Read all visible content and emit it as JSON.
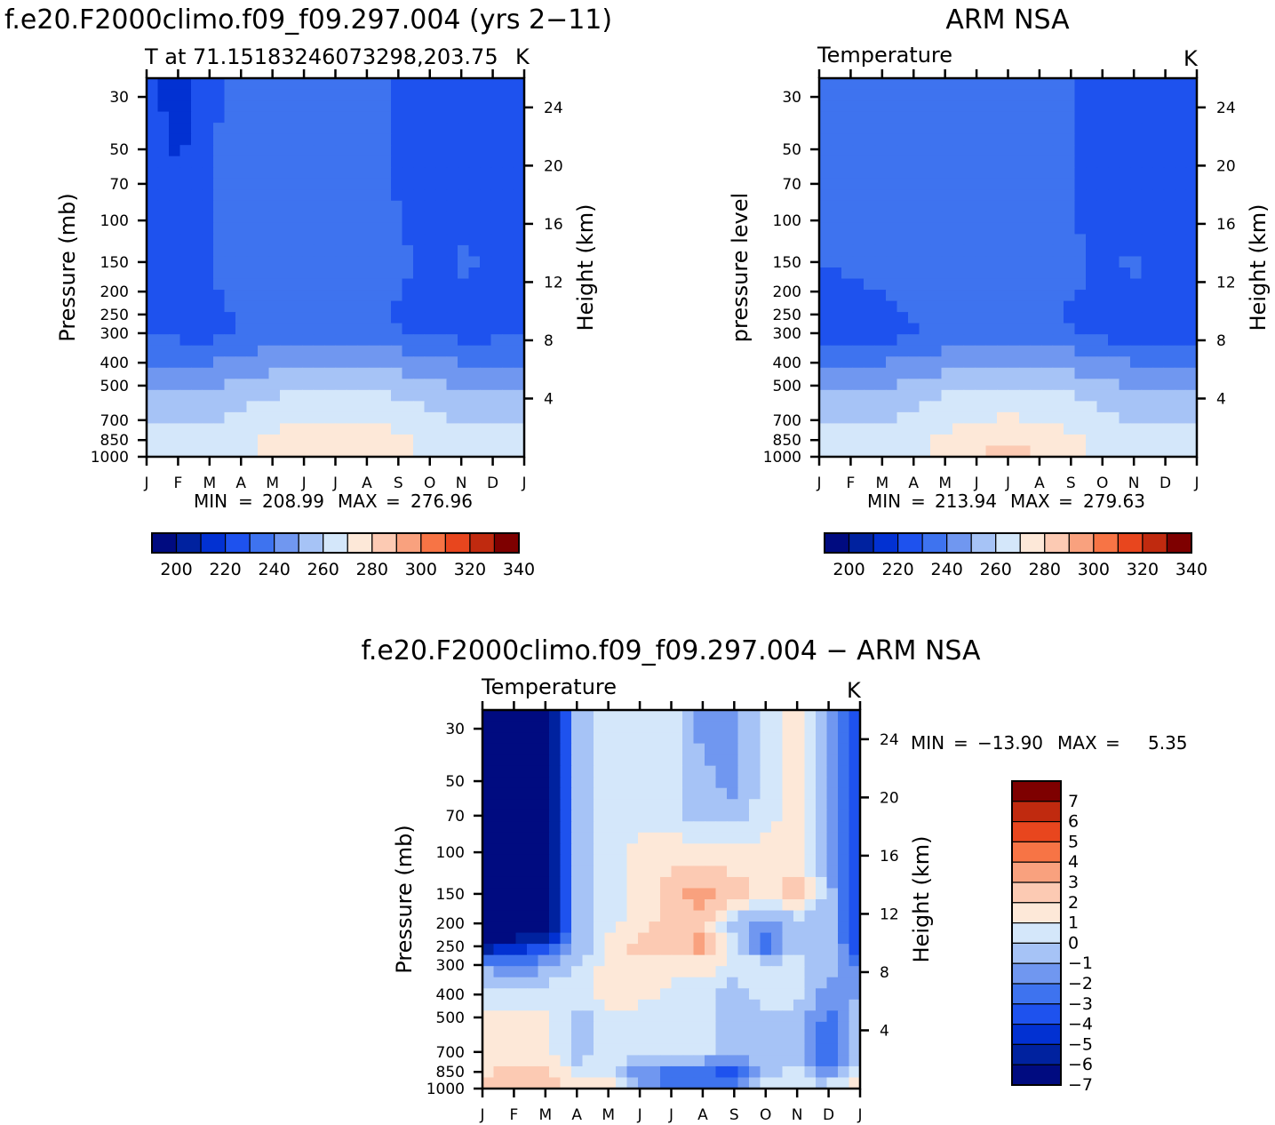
{
  "titles": {
    "top_left": "f.e20.F2000climo.f09_f09.297.004 (yrs 2−11)",
    "top_right": "ARM NSA",
    "bottom": "f.e20.F2000climo.f09_f09.297.004 − ARM NSA"
  },
  "chart_data": [
    {
      "type": "heatmap",
      "subtitle": "T at 71.15183246073298,203.75",
      "units": "K",
      "ylabel": "Pressure (mb)",
      "ylabel_right": "Height (km)",
      "x_ticks": [
        "J",
        "F",
        "M",
        "A",
        "M",
        "J",
        "J",
        "A",
        "S",
        "O",
        "N",
        "D",
        "J"
      ],
      "y_ticks": [
        30,
        50,
        70,
        100,
        150,
        200,
        250,
        300,
        400,
        500,
        700,
        850,
        1000
      ],
      "y_right_ticks": [
        4,
        8,
        12,
        16,
        20,
        24
      ],
      "ylim": [
        1000,
        25
      ],
      "min_label": "MIN",
      "min": "208.99",
      "max_label": "MAX",
      "max": "276.96",
      "colorbar": {
        "labels": [
          "200",
          "220",
          "240",
          "260",
          "280",
          "300",
          "320",
          "340"
        ],
        "colors": [
          "#000b80",
          "#00229f",
          "#0231d2",
          "#1e52ee",
          "#3e73ef",
          "#7097f0",
          "#a6c3f6",
          "#d4e7fa",
          "#fde8d8",
          "#fccab3",
          "#f9a17e",
          "#f77445",
          "#e8461e",
          "#c02a0f",
          "#7e0000"
        ]
      },
      "grid": [
        [
          225,
          205,
          222,
          230,
          230,
          230,
          230,
          230,
          222,
          216,
          216,
          216,
          222
        ],
        [
          222,
          212,
          224,
          230,
          230,
          230,
          230,
          230,
          224,
          216,
          216,
          218,
          222
        ],
        [
          222,
          220,
          224,
          230,
          230,
          230,
          230,
          230,
          224,
          216,
          218,
          220,
          222
        ],
        [
          222,
          222,
          224,
          230,
          230,
          230,
          230,
          230,
          226,
          218,
          224,
          222,
          222
        ],
        [
          222,
          222,
          224,
          230,
          230,
          230,
          230,
          230,
          228,
          222,
          226,
          224,
          222
        ],
        [
          222,
          222,
          224,
          230,
          230,
          230,
          230,
          230,
          226,
          220,
          224,
          222,
          222
        ],
        [
          219,
          219,
          218,
          228,
          230,
          230,
          230,
          230,
          222,
          217,
          219,
          219,
          219
        ],
        [
          224,
          222,
          222,
          226,
          230,
          230,
          232,
          230,
          228,
          222,
          222,
          222,
          224
        ],
        [
          235,
          235,
          235,
          238,
          240,
          242,
          242,
          242,
          240,
          238,
          235,
          235,
          235
        ],
        [
          244,
          244,
          244,
          248,
          252,
          254,
          254,
          254,
          252,
          248,
          244,
          244,
          244
        ],
        [
          254,
          254,
          254,
          258,
          262,
          264,
          265,
          264,
          262,
          258,
          254,
          254,
          254
        ],
        [
          258,
          258,
          258,
          262,
          268,
          272,
          274,
          272,
          268,
          262,
          258,
          258,
          258
        ],
        [
          258,
          258,
          258,
          262,
          268,
          274,
          276,
          274,
          268,
          262,
          258,
          258,
          258
        ]
      ]
    },
    {
      "type": "heatmap",
      "subtitle": "Temperature",
      "units": "K",
      "ylabel": "pressure level",
      "ylabel_right": "Height (km)",
      "x_ticks": [
        "J",
        "F",
        "M",
        "A",
        "M",
        "J",
        "J",
        "A",
        "S",
        "O",
        "N",
        "D",
        "J"
      ],
      "y_ticks": [
        30,
        50,
        70,
        100,
        150,
        200,
        250,
        300,
        400,
        500,
        700,
        850,
        1000
      ],
      "y_right_ticks": [
        4,
        8,
        12,
        16,
        20,
        24
      ],
      "ylim": [
        1000,
        25
      ],
      "min_label": "MIN",
      "min": "213.94",
      "max_label": "MAX",
      "max": "279.63",
      "colorbar": {
        "labels": [
          "200",
          "220",
          "240",
          "260",
          "280",
          "300",
          "320",
          "340"
        ],
        "colors": [
          "#000b80",
          "#00229f",
          "#0231d2",
          "#1e52ee",
          "#3e73ef",
          "#7097f0",
          "#a6c3f6",
          "#d4e7fa",
          "#fde8d8",
          "#fccab3",
          "#f9a17e",
          "#f77445",
          "#e8461e",
          "#c02a0f",
          "#7e0000"
        ]
      },
      "grid": [
        [
          226,
          226,
          226,
          226,
          228,
          230,
          234,
          230,
          226,
          220,
          216,
          218,
          222
        ],
        [
          226,
          226,
          226,
          226,
          228,
          230,
          230,
          230,
          226,
          220,
          216,
          218,
          222
        ],
        [
          226,
          226,
          226,
          226,
          228,
          230,
          230,
          230,
          226,
          220,
          218,
          220,
          222
        ],
        [
          226,
          226,
          226,
          226,
          228,
          230,
          230,
          230,
          226,
          222,
          220,
          222,
          222
        ],
        [
          226,
          226,
          226,
          226,
          228,
          230,
          230,
          230,
          226,
          224,
          226,
          222,
          222
        ],
        [
          222,
          224,
          226,
          226,
          228,
          230,
          230,
          230,
          226,
          224,
          224,
          222,
          222
        ],
        [
          218,
          218,
          220,
          228,
          230,
          230,
          230,
          230,
          222,
          218,
          218,
          218,
          218
        ],
        [
          219,
          219,
          218,
          224,
          230,
          230,
          232,
          230,
          228,
          222,
          219,
          219,
          219
        ],
        [
          235,
          235,
          235,
          238,
          240,
          242,
          242,
          242,
          240,
          238,
          235,
          235,
          235
        ],
        [
          244,
          244,
          244,
          248,
          252,
          254,
          255,
          254,
          252,
          248,
          244,
          244,
          244
        ],
        [
          254,
          254,
          254,
          258,
          262,
          265,
          266,
          265,
          262,
          258,
          254,
          254,
          254
        ],
        [
          258,
          258,
          258,
          262,
          268,
          273,
          275,
          273,
          268,
          262,
          258,
          258,
          258
        ],
        [
          258,
          258,
          258,
          262,
          268,
          275,
          279,
          275,
          268,
          262,
          258,
          258,
          258
        ]
      ]
    },
    {
      "type": "heatmap",
      "subtitle": "Temperature",
      "units": "K",
      "ylabel": "Pressure (mb)",
      "ylabel_right": "Height (km)",
      "x_ticks": [
        "J",
        "F",
        "M",
        "A",
        "M",
        "J",
        "J",
        "A",
        "S",
        "O",
        "N",
        "D",
        "J"
      ],
      "y_ticks": [
        30,
        50,
        70,
        100,
        150,
        200,
        250,
        300,
        400,
        500,
        700,
        850,
        1000
      ],
      "y_right_ticks": [
        4,
        8,
        12,
        16,
        20,
        24
      ],
      "ylim": [
        1000,
        25
      ],
      "min_label": "MIN",
      "min": "−13.90",
      "max_label": "MAX",
      "max": "5.35",
      "colorbar": {
        "labels": [
          "7",
          "6",
          "5",
          "4",
          "3",
          "2",
          "1",
          "0",
          "−1",
          "−2",
          "−3",
          "−4",
          "−5",
          "−6",
          "−7"
        ],
        "colors": [
          "#000b80",
          "#00229f",
          "#0231d2",
          "#1e52ee",
          "#3e73ef",
          "#7097f0",
          "#a6c3f6",
          "#d4e7fa",
          "#fde8d8",
          "#fccab3",
          "#f9a17e",
          "#f77445",
          "#e8461e",
          "#c02a0f",
          "#7e0000"
        ]
      },
      "grid": [
        [
          -9,
          -9,
          -9,
          -2,
          -0.5,
          -0.5,
          -0.5,
          -2.5,
          -2.5,
          -0.5,
          0.5,
          -2,
          -5
        ],
        [
          -9,
          -9,
          -9,
          -2,
          -0.5,
          -0.5,
          -0.5,
          -1.5,
          -2.5,
          -0.5,
          0.5,
          -2,
          -5
        ],
        [
          -9,
          -9,
          -9,
          -2,
          -0.5,
          -0.5,
          -0.5,
          -1.5,
          -1.5,
          -0.5,
          0.5,
          -2,
          -5
        ],
        [
          -9,
          -9,
          -9,
          -2,
          -0.5,
          0.5,
          0.5,
          0.5,
          0.5,
          0.5,
          0.5,
          -2,
          -5
        ],
        [
          -9,
          -9,
          -9,
          -2,
          -0.5,
          0.5,
          1.5,
          2.5,
          1.5,
          0.5,
          1.5,
          -1.5,
          -5
        ],
        [
          -9,
          -9,
          -9,
          -2,
          -0.5,
          0.5,
          1.5,
          1.5,
          -1.5,
          -2.5,
          -1.5,
          -1.5,
          -5
        ],
        [
          -7,
          -6,
          -5,
          -2,
          0.5,
          1.5,
          1.5,
          2.5,
          -0.5,
          -3.5,
          -1.5,
          -1.5,
          -5
        ],
        [
          -2,
          -3,
          -2,
          -1,
          0.5,
          0.5,
          0.5,
          0.5,
          -0.5,
          -0.5,
          -0.5,
          -1.5,
          -3
        ],
        [
          -0.5,
          -1,
          -0.5,
          -0.5,
          0.5,
          0.5,
          -0.5,
          -0.5,
          -1.5,
          -0.5,
          -0.5,
          -2.5,
          -2
        ],
        [
          0.5,
          0.5,
          0.5,
          -1.5,
          -0.5,
          -0.5,
          -0.5,
          -0.5,
          -1.5,
          -1.5,
          -1.5,
          -3.5,
          -1
        ],
        [
          0.5,
          0.5,
          0.5,
          -1.5,
          -0.5,
          -0.5,
          -0.5,
          -0.5,
          -1.5,
          -1.5,
          -1.5,
          -4.5,
          -0.5
        ],
        [
          0.5,
          1.5,
          1.5,
          -0.5,
          -0.5,
          -2.5,
          -3.5,
          -3.5,
          -4.5,
          -1.5,
          -0.5,
          -2.5,
          -0.5
        ],
        [
          1.5,
          1.5,
          1.5,
          0.5,
          1.5,
          -1.5,
          -3.5,
          -3.5,
          -2.5,
          -0.5,
          -0.5,
          -0.5,
          1.5
        ]
      ]
    }
  ]
}
